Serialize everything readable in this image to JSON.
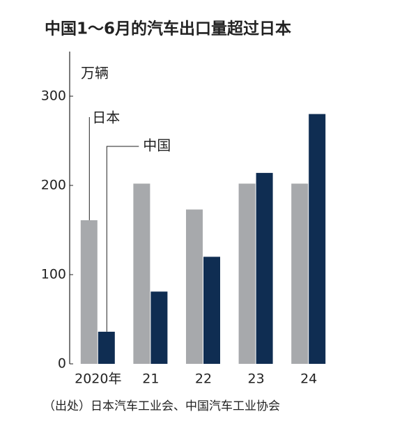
{
  "chart_data": {
    "type": "bar",
    "title": "中国1～6月的汽车出口量超过日本",
    "y_label": "万辆",
    "categories": [
      "2020年",
      "21",
      "22",
      "23",
      "24"
    ],
    "series": [
      {
        "name": "日本",
        "color": "#a7a9ac",
        "values": [
          161,
          202,
          173,
          202,
          202
        ]
      },
      {
        "name": "中国",
        "color": "#0f2d52",
        "values": [
          36,
          81,
          120,
          214,
          280
        ]
      }
    ],
    "ylim": [
      0,
      350
    ],
    "yticks": [
      0,
      100,
      200,
      300
    ],
    "source": "（出处）日本汽车工业会、中国汽车工业协会"
  }
}
